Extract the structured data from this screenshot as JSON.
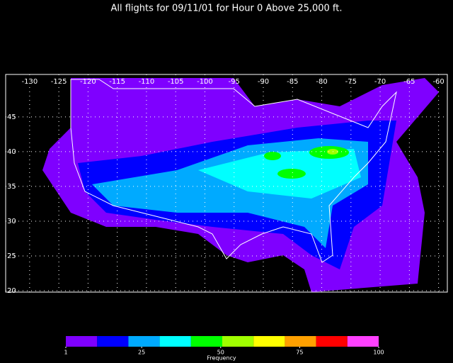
{
  "title": "All flights for 09/11/01 for Hour 0 Above 25,000 ft.",
  "map": {
    "lon_lim": [
      -134.1,
      -58.5
    ],
    "lat_lim": [
      19.8,
      51.1
    ],
    "lon_ticks": [
      -130,
      -125,
      -120,
      -115,
      -110,
      -105,
      -100,
      -95,
      -90,
      -85,
      -80,
      -75,
      -70,
      -65,
      -60
    ],
    "lat_ticks": [
      20,
      25,
      30,
      35,
      40,
      45
    ],
    "grid": true
  },
  "colorbar": {
    "label": "Frequency",
    "lim": [
      1,
      100
    ],
    "ticks": [
      1,
      25,
      50,
      75,
      100
    ],
    "colors": [
      "#7f00ff",
      "#0000ff",
      "#00aaff",
      "#00ffff",
      "#00ff00",
      "#a0ff00",
      "#ffff00",
      "#ffa000",
      "#ff0000",
      "#ff40ff"
    ]
  }
}
